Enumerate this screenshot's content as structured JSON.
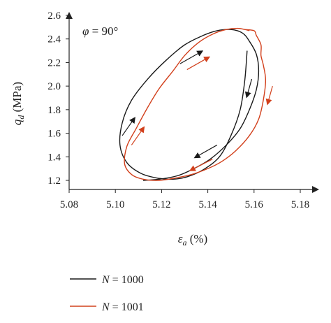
{
  "chart_data": {
    "type": "line",
    "annotation": {
      "symbol": "φ",
      "text": " = 90°"
    },
    "xlabel": {
      "symbol": "ε",
      "sub": "a",
      "unit": " (%)"
    },
    "ylabel": {
      "symbol": "q",
      "sub": "d",
      "unit": " (MPa)"
    },
    "xlim": [
      5.08,
      5.19
    ],
    "ylim": [
      1.15,
      2.62
    ],
    "xticks": [
      "5.08",
      "5.10",
      "5.12",
      "5.14",
      "5.16",
      "5.18"
    ],
    "xtick_values": [
      5.08,
      5.1,
      5.12,
      5.14,
      5.16,
      5.18
    ],
    "yticks": [
      "1.2",
      "1.4",
      "1.6",
      "1.8",
      "2.0",
      "2.2",
      "2.4",
      "2.6"
    ],
    "ytick_values": [
      1.2,
      1.4,
      1.6,
      1.8,
      2.0,
      2.2,
      2.4,
      2.6
    ],
    "grid": false,
    "legend_position": "bottom-left",
    "series": [
      {
        "name": "N = 1000",
        "legend": {
          "symbol": "N",
          "text": " = 1000"
        },
        "color": "#1a1a1a",
        "x": [
          5.112,
          5.119,
          5.127,
          5.134,
          5.141,
          5.148,
          5.154,
          5.158,
          5.161,
          5.162,
          5.161,
          5.158,
          5.155,
          5.15,
          5.144,
          5.138,
          5.13,
          5.122,
          5.114,
          5.107,
          5.103,
          5.102,
          5.105,
          5.111,
          5.118,
          5.125,
          5.131,
          5.138,
          5.145,
          5.15,
          5.154,
          5.156,
          5.157
        ],
        "y": [
          1.2,
          1.21,
          1.24,
          1.3,
          1.38,
          1.5,
          1.64,
          1.8,
          1.97,
          2.13,
          2.27,
          2.38,
          2.45,
          2.48,
          2.47,
          2.43,
          2.35,
          2.22,
          2.06,
          1.88,
          1.69,
          1.5,
          1.35,
          1.26,
          1.22,
          1.21,
          1.23,
          1.29,
          1.4,
          1.58,
          1.8,
          2.05,
          2.3
        ]
      },
      {
        "name": "N = 1001",
        "legend": {
          "symbol": "N",
          "text": " = 1001"
        },
        "color": "#d2401c",
        "x": [
          5.156,
          5.16,
          5.161,
          5.163,
          5.163,
          5.164,
          5.165,
          5.164,
          5.162,
          5.158,
          5.152,
          5.146,
          5.14,
          5.133,
          5.126,
          5.119,
          5.112,
          5.107,
          5.104,
          5.105,
          5.109,
          5.114,
          5.119,
          5.125,
          5.13,
          5.136,
          5.142,
          5.148,
          5.153,
          5.156,
          5.158
        ],
        "y": [
          2.48,
          2.47,
          2.43,
          2.35,
          2.26,
          2.18,
          2.05,
          1.88,
          1.72,
          1.58,
          1.45,
          1.36,
          1.3,
          1.25,
          1.22,
          1.2,
          1.21,
          1.25,
          1.34,
          1.49,
          1.64,
          1.82,
          1.98,
          2.13,
          2.26,
          2.37,
          2.44,
          2.48,
          2.49,
          2.48,
          2.47
        ]
      }
    ],
    "direction_arrows": [
      {
        "color": "#1a1a1a",
        "x1": 5.128,
        "y1": 2.19,
        "x2": 5.137,
        "y2": 2.29
      },
      {
        "color": "#1a1a1a",
        "x1": 5.159,
        "y1": 2.06,
        "x2": 5.157,
        "y2": 1.92
      },
      {
        "color": "#1a1a1a",
        "x1": 5.144,
        "y1": 1.5,
        "x2": 5.135,
        "y2": 1.4
      },
      {
        "color": "#1a1a1a",
        "x1": 5.103,
        "y1": 1.58,
        "x2": 5.108,
        "y2": 1.72
      },
      {
        "color": "#d2401c",
        "x1": 5.131,
        "y1": 2.14,
        "x2": 5.14,
        "y2": 2.24
      },
      {
        "color": "#d2401c",
        "x1": 5.168,
        "y1": 2.0,
        "x2": 5.166,
        "y2": 1.86
      },
      {
        "color": "#d2401c",
        "x1": 5.142,
        "y1": 1.38,
        "x2": 5.133,
        "y2": 1.29
      },
      {
        "color": "#d2401c",
        "x1": 5.107,
        "y1": 1.5,
        "x2": 5.112,
        "y2": 1.64
      }
    ]
  }
}
